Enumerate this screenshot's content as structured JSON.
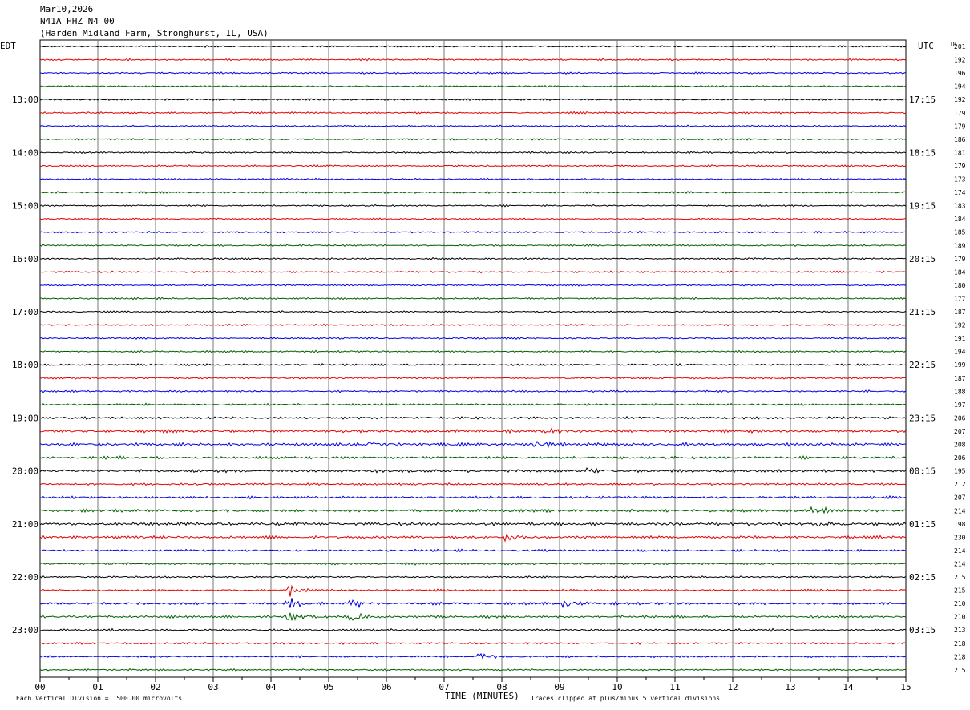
{
  "header": {
    "date": "Mar10,2026",
    "station": "N41A HHZ N4 00",
    "location": "(Harden Midland Farm, Stronghurst, IL, USA)"
  },
  "colors": {
    "trace_cycle": [
      "#000000",
      "#e00000",
      "#0000e0",
      "#006000"
    ],
    "grid": "#777777"
  },
  "chart_data": {
    "type": "line",
    "subtype": "helicorder",
    "left_label": "EDT",
    "right_label": "UTC",
    "dc_label": "DC",
    "xlabel": "TIME (MINUTES)",
    "x_ticks": [
      "00",
      "01",
      "02",
      "03",
      "04",
      "05",
      "06",
      "07",
      "08",
      "09",
      "10",
      "11",
      "12",
      "13",
      "14",
      "15"
    ],
    "xlim": [
      0,
      15
    ],
    "row_count": 48,
    "left_hour_labels": [
      "13:00",
      "14:00",
      "15:00",
      "16:00",
      "17:00",
      "18:00",
      "19:00",
      "20:00",
      "21:00",
      "22:00",
      "23:00"
    ],
    "right_hour_labels": [
      "17:15",
      "18:15",
      "19:15",
      "20:15",
      "21:15",
      "22:15",
      "23:15",
      "00:15",
      "01:15",
      "02:15",
      "03:15"
    ],
    "dc_offsets": [
      201,
      192,
      196,
      194,
      192,
      179,
      179,
      186,
      181,
      179,
      173,
      174,
      183,
      184,
      185,
      189,
      179,
      184,
      180,
      177,
      187,
      192,
      191,
      194,
      199,
      187,
      188,
      197,
      206,
      207,
      208,
      206,
      195,
      212,
      207,
      214,
      198,
      230,
      214,
      214,
      215,
      215,
      210,
      210,
      213,
      218,
      218,
      215
    ],
    "row_amplitude": [
      1,
      1,
      1,
      1,
      1,
      1,
      1,
      1,
      1,
      1,
      1,
      1,
      1,
      1,
      1,
      1,
      1,
      1,
      1,
      1,
      1,
      1,
      1,
      1,
      1.1,
      1.1,
      1.1,
      1.2,
      1.5,
      1.7,
      1.8,
      1.6,
      1.8,
      1.3,
      1.4,
      1.7,
      1.9,
      1.6,
      1.3,
      1.2,
      1.1,
      1.2,
      1.5,
      1.4,
      1.3,
      1.1,
      1.1,
      1.1
    ],
    "events": [
      {
        "row": 29,
        "minute": 8.8,
        "amp": 3
      },
      {
        "row": 30,
        "minute": 5.7,
        "amp": 2
      },
      {
        "row": 30,
        "minute": 8.6,
        "amp": 3
      },
      {
        "row": 32,
        "minute": 9.5,
        "amp": 3
      },
      {
        "row": 35,
        "minute": 13.4,
        "amp": 3
      },
      {
        "row": 36,
        "minute": 13.5,
        "amp": 3
      },
      {
        "row": 37,
        "minute": 8.1,
        "amp": 3
      },
      {
        "row": 41,
        "minute": 4.3,
        "amp": 5
      },
      {
        "row": 42,
        "minute": 4.3,
        "amp": 4
      },
      {
        "row": 42,
        "minute": 9.1,
        "amp": 4
      },
      {
        "row": 42,
        "minute": 5.4,
        "amp": 4
      },
      {
        "row": 43,
        "minute": 4.3,
        "amp": 4
      },
      {
        "row": 43,
        "minute": 5.4,
        "amp": 4
      },
      {
        "row": 46,
        "minute": 7.6,
        "amp": 5
      }
    ]
  },
  "footer": {
    "scale_note": "Each Vertical Division =  500.00 microvolts",
    "clip_note": "Traces clipped at plus/minus 5 vertical divisions"
  }
}
